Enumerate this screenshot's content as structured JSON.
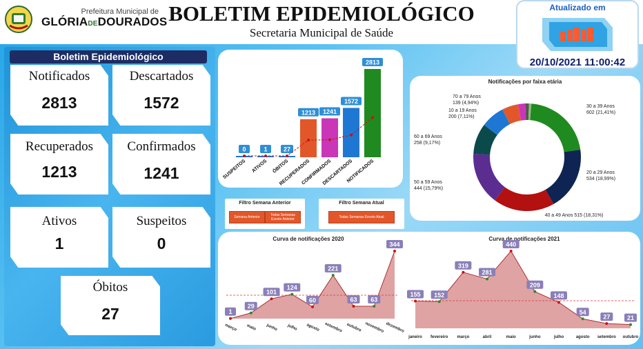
{
  "header": {
    "prefeitura": "Prefeitura Municipal de",
    "city_a": "GLÓRIA",
    "city_de": "DE",
    "city_b": "DOURADOS",
    "title": "BOLETIM EPIDEMIOLÓGICO",
    "subtitle": "Secretaria Municipal de Saúde",
    "updated_label": "Atualizado em",
    "updated_date": "20/10/2021 11:00:42"
  },
  "summary": {
    "title": "Boletim Epidemiológico",
    "cards": [
      {
        "label": "Notificados",
        "value": "2813"
      },
      {
        "label": "Descartados",
        "value": "1572"
      },
      {
        "label": "Recuperados",
        "value": "1213"
      },
      {
        "label": "Confirmados",
        "value": "1241"
      },
      {
        "label": "Ativos",
        "value": "1"
      },
      {
        "label": "Suspeitos",
        "value": "0"
      },
      {
        "label": "Óbitos",
        "value": "27"
      }
    ]
  },
  "filters": {
    "previous": {
      "title": "Filtro Semana Anterior",
      "btn1": "Semana Anterior",
      "btn2": "Todas Semanas Exceto Anterior"
    },
    "current": {
      "title": "Filtro Semana Atual",
      "btn1": "Todas Semanas Exceto Atual"
    }
  },
  "colors": {
    "accent_dark": "#1d2d63",
    "orange": "#e2572a",
    "magenta": "#c936b8",
    "blue": "#1f77d4",
    "green": "#1f8a1f",
    "area": "#d99393",
    "label_box": "#2e8fd6"
  },
  "chart_data": [
    {
      "type": "bar",
      "categories": [
        "SUSPEITOS",
        "ATIVOS",
        "ÓBITOS",
        "RECUPERADOS",
        "CONFIRMADOS",
        "DESCARTADOS",
        "NOTIFICADOS"
      ],
      "values": [
        0,
        1,
        27,
        1213,
        1241,
        1572,
        2813
      ],
      "colors": [
        "#1f77d4",
        "#1f77d4",
        "#1f77d4",
        "#e2572a",
        "#c936b8",
        "#1f77d4",
        "#1f8a1f"
      ],
      "trendline": "red dashed",
      "grid": false
    },
    {
      "type": "pie",
      "title": "Notificações por faixa etária",
      "style": "donut",
      "slices": [
        {
          "label": "30 a 39 Anos",
          "value": 602,
          "pct": "21,41%",
          "color": "#1f8a1f"
        },
        {
          "label": "20 a 29 Anos",
          "value": 534,
          "pct": "18,99%",
          "color": "#0e2452"
        },
        {
          "label": "40 a 49 Anos",
          "value": 515,
          "pct": "18,31%",
          "color": "#b31010"
        },
        {
          "label": "50 a 59 Anos",
          "value": 444,
          "pct": "15,79%",
          "color": "#5b2d91"
        },
        {
          "label": "60 a 69 Anos",
          "value": 258,
          "pct": "9,17%",
          "color": "#0b4a4a"
        },
        {
          "label": "10 a 19 Anos",
          "value": 200,
          "pct": "7,11%",
          "color": "#1f77d4"
        },
        {
          "label": "70 a 79 Anos",
          "value": 139,
          "pct": "4,94%",
          "color": "#e2572a"
        },
        {
          "label": "",
          "value": 60,
          "pct": "",
          "color": "#c936b8"
        },
        {
          "label": "",
          "value": 30,
          "pct": "",
          "color": "#555555"
        },
        {
          "label": "",
          "value": 20,
          "pct": "",
          "color": "#88c070"
        }
      ]
    },
    {
      "type": "area",
      "title": "Curva de notificações 2020",
      "categories": [
        "março",
        "maio",
        "junho",
        "julho",
        "agosto",
        "setembro",
        "outubro",
        "novembro",
        "dezembro"
      ],
      "values": [
        1,
        29,
        101,
        124,
        60,
        221,
        63,
        63,
        344
      ],
      "reference_line": "red dashed"
    },
    {
      "type": "area",
      "title": "Curva de notificações 2021",
      "categories": [
        "janeiro",
        "fevereiro",
        "março",
        "abril",
        "maio",
        "junho",
        "julho",
        "agosto",
        "setembro",
        "outubro"
      ],
      "values": [
        155,
        152,
        319,
        281,
        440,
        209,
        148,
        54,
        27,
        21
      ],
      "reference_line": "red dashed"
    }
  ]
}
